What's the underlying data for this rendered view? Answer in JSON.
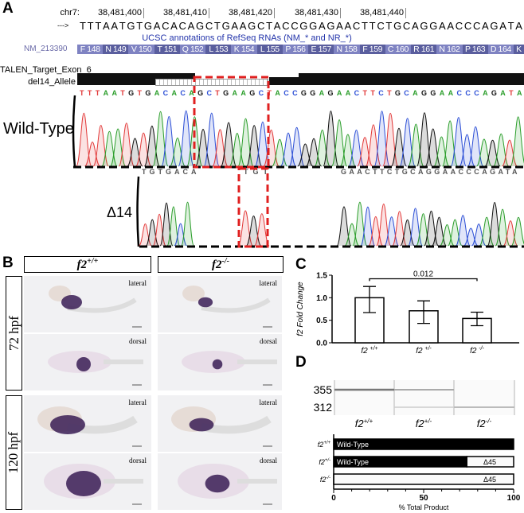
{
  "panel_a": {
    "label": "A",
    "chrom": "chr7:",
    "positions": [
      "38,481,400",
      "38,481,410",
      "38,481,420",
      "38,481,430",
      "38,481,440"
    ],
    "arrow": "--->",
    "reference": "TTTAATGTGACACAGCTGAAGCTACCGGAGAACTTCTGCAGGAACCCAGATA",
    "track_title": "UCSC annotations of RefSeq RNAs (NM_* and NR_*)",
    "transcript": "NM_213390",
    "amino_acids": [
      "F 148",
      "N 149",
      "V 150",
      "T 151",
      "Q 152",
      "L 153",
      "K 154",
      "L 155",
      "P 156",
      "E 157",
      "N 158",
      "F 159",
      "C 160",
      "R 161",
      "N 162",
      "P 163",
      "D 164",
      "K"
    ],
    "tracks": [
      "TALEN_Target_Exon_6",
      "del14_Allele"
    ],
    "wt_label": "Wild-Type",
    "wt_calls": "TTTAATGTGACACAGCTGAAGCTACCGGAGAACTTCTGCAGGAACCCAGATA",
    "del_label": "Δ14",
    "del_calls": [
      "TGTGACA",
      "TGT",
      "GAACTTCTGCAGGAACCCAGATA"
    ]
  },
  "panel_b": {
    "label": "B",
    "columns": [
      {
        "base": "f2",
        "sup": "+/+"
      },
      {
        "base": "f2",
        "sup": "-/-"
      }
    ],
    "rows": [
      {
        "label": "72 hpf",
        "views": [
          "lateral",
          "dorsal"
        ]
      },
      {
        "label": "120 hpf",
        "views": [
          "lateral",
          "dorsal"
        ]
      }
    ]
  },
  "panel_c": {
    "label": "C",
    "chart_data": {
      "type": "bar",
      "ylabel": "f2 Fold Change",
      "categories": [
        {
          "base": "f2",
          "sup": "+/+"
        },
        {
          "base": "f2",
          "sup": "+/-"
        },
        {
          "base": "f2",
          "sup": "-/-"
        }
      ],
      "values": [
        1.0,
        0.71,
        0.54
      ],
      "error_low": [
        0.67,
        0.43,
        0.38
      ],
      "error_high": [
        1.25,
        0.93,
        0.68
      ],
      "ylim": [
        0,
        1.5
      ],
      "yticks": [
        "0.0",
        "0.5",
        "1.0",
        "1.5"
      ],
      "annotation": "0.012"
    }
  },
  "panel_d": {
    "label": "D",
    "gel": {
      "sizes": [
        "355",
        "312"
      ],
      "lanes": [
        {
          "base": "f2",
          "sup": "+/+"
        },
        {
          "base": "f2",
          "sup": "+/-"
        },
        {
          "base": "f2",
          "sup": "-/-"
        }
      ]
    },
    "chart_data": {
      "type": "bar",
      "orientation": "horizontal-stacked",
      "xlabel": "% Total Product",
      "xlim": [
        0,
        100
      ],
      "xticks": [
        "0",
        "50",
        "100"
      ],
      "rows": [
        {
          "base": "f2",
          "sup": "+/+",
          "segments": [
            {
              "name": "Wild-Type",
              "value": 100
            }
          ]
        },
        {
          "base": "f2",
          "sup": "+/-",
          "segments": [
            {
              "name": "Wild-Type",
              "value": 74
            },
            {
              "name": "Δ45",
              "value": 26
            }
          ]
        },
        {
          "base": "f2",
          "sup": "-/-",
          "segments": [
            {
              "name": "Δ45",
              "value": 100
            }
          ]
        }
      ]
    }
  },
  "colors": {
    "A": "#2b9e2b",
    "C": "#2c4fd6",
    "G": "#111111",
    "T": "#e23a3a",
    "aa_dark": "#5a5e9e",
    "aa_light": "#7f83c2",
    "red_box": "#e02020"
  }
}
